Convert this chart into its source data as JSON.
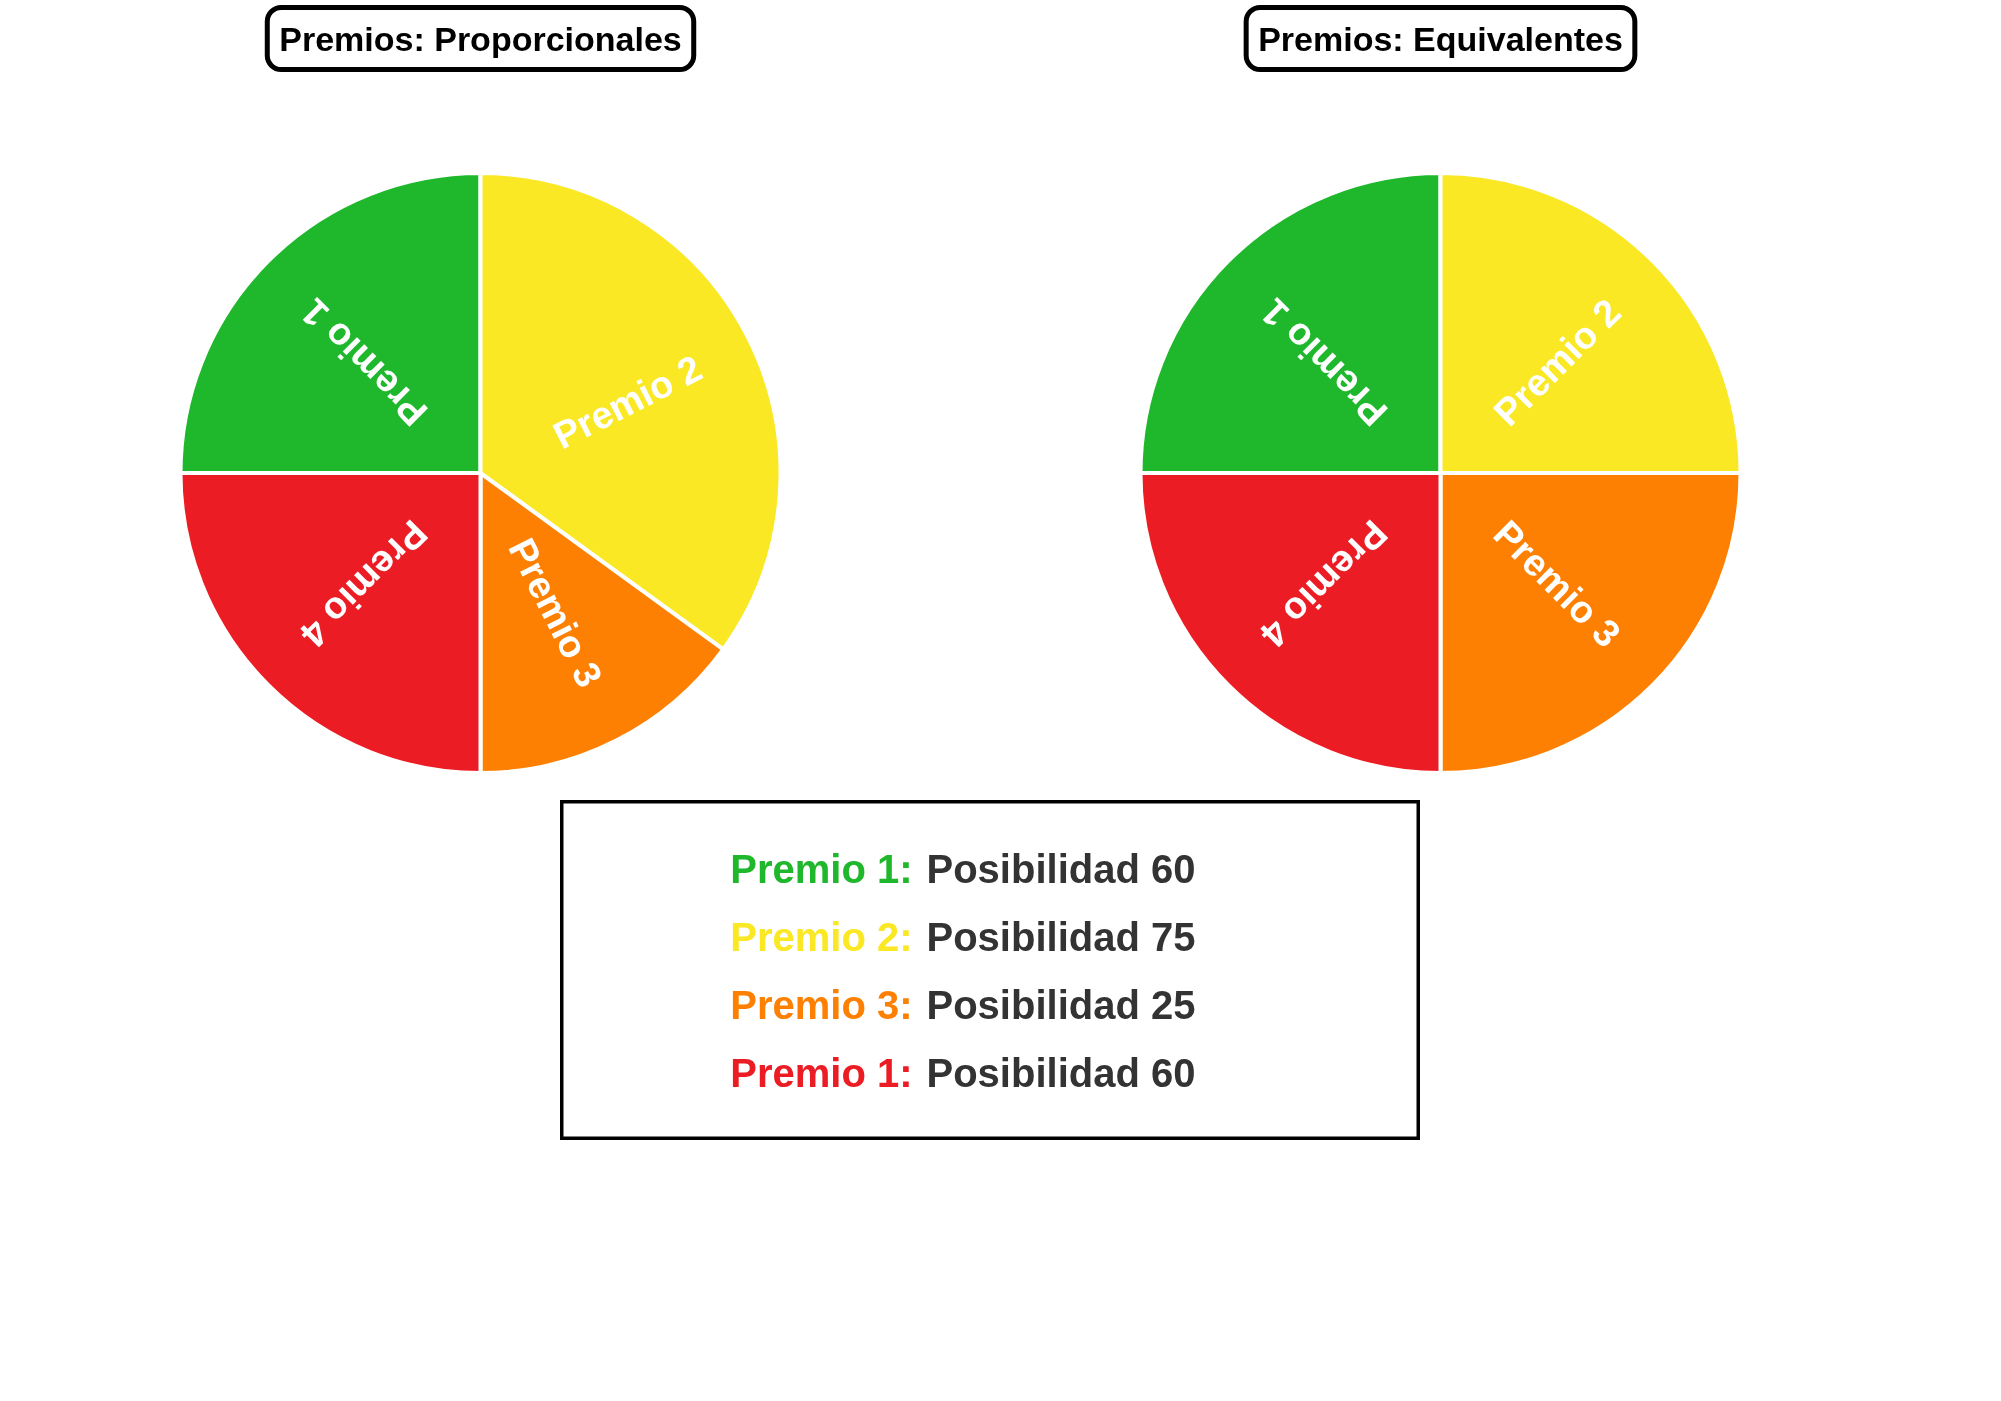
{
  "chart_data": [
    {
      "type": "pie",
      "title": "Premios: Proporcionales",
      "categories": [
        "Premio 1",
        "Premio 2",
        "Premio 3",
        "Premio 4"
      ],
      "values": [
        25,
        35,
        15,
        25
      ],
      "colors": [
        "#1fb82c",
        "#f9e823",
        "#fe8002",
        "#ec1c24"
      ]
    },
    {
      "type": "pie",
      "title": "Premios: Equivalentes",
      "categories": [
        "Premio 1",
        "Premio 2",
        "Premio 3",
        "Premio 4"
      ],
      "values": [
        25,
        25,
        25,
        25
      ],
      "colors": [
        "#1fb82c",
        "#f9e823",
        "#fe8002",
        "#ec1c24"
      ]
    },
    {
      "type": "other",
      "annotations": [
        "Premio 1: Posibilidad 60",
        "Premio 2: Posibilidad 75",
        "Premio 3: Posibilidad 25",
        "Premio 1: Posibilidad 60"
      ]
    }
  ]
}
